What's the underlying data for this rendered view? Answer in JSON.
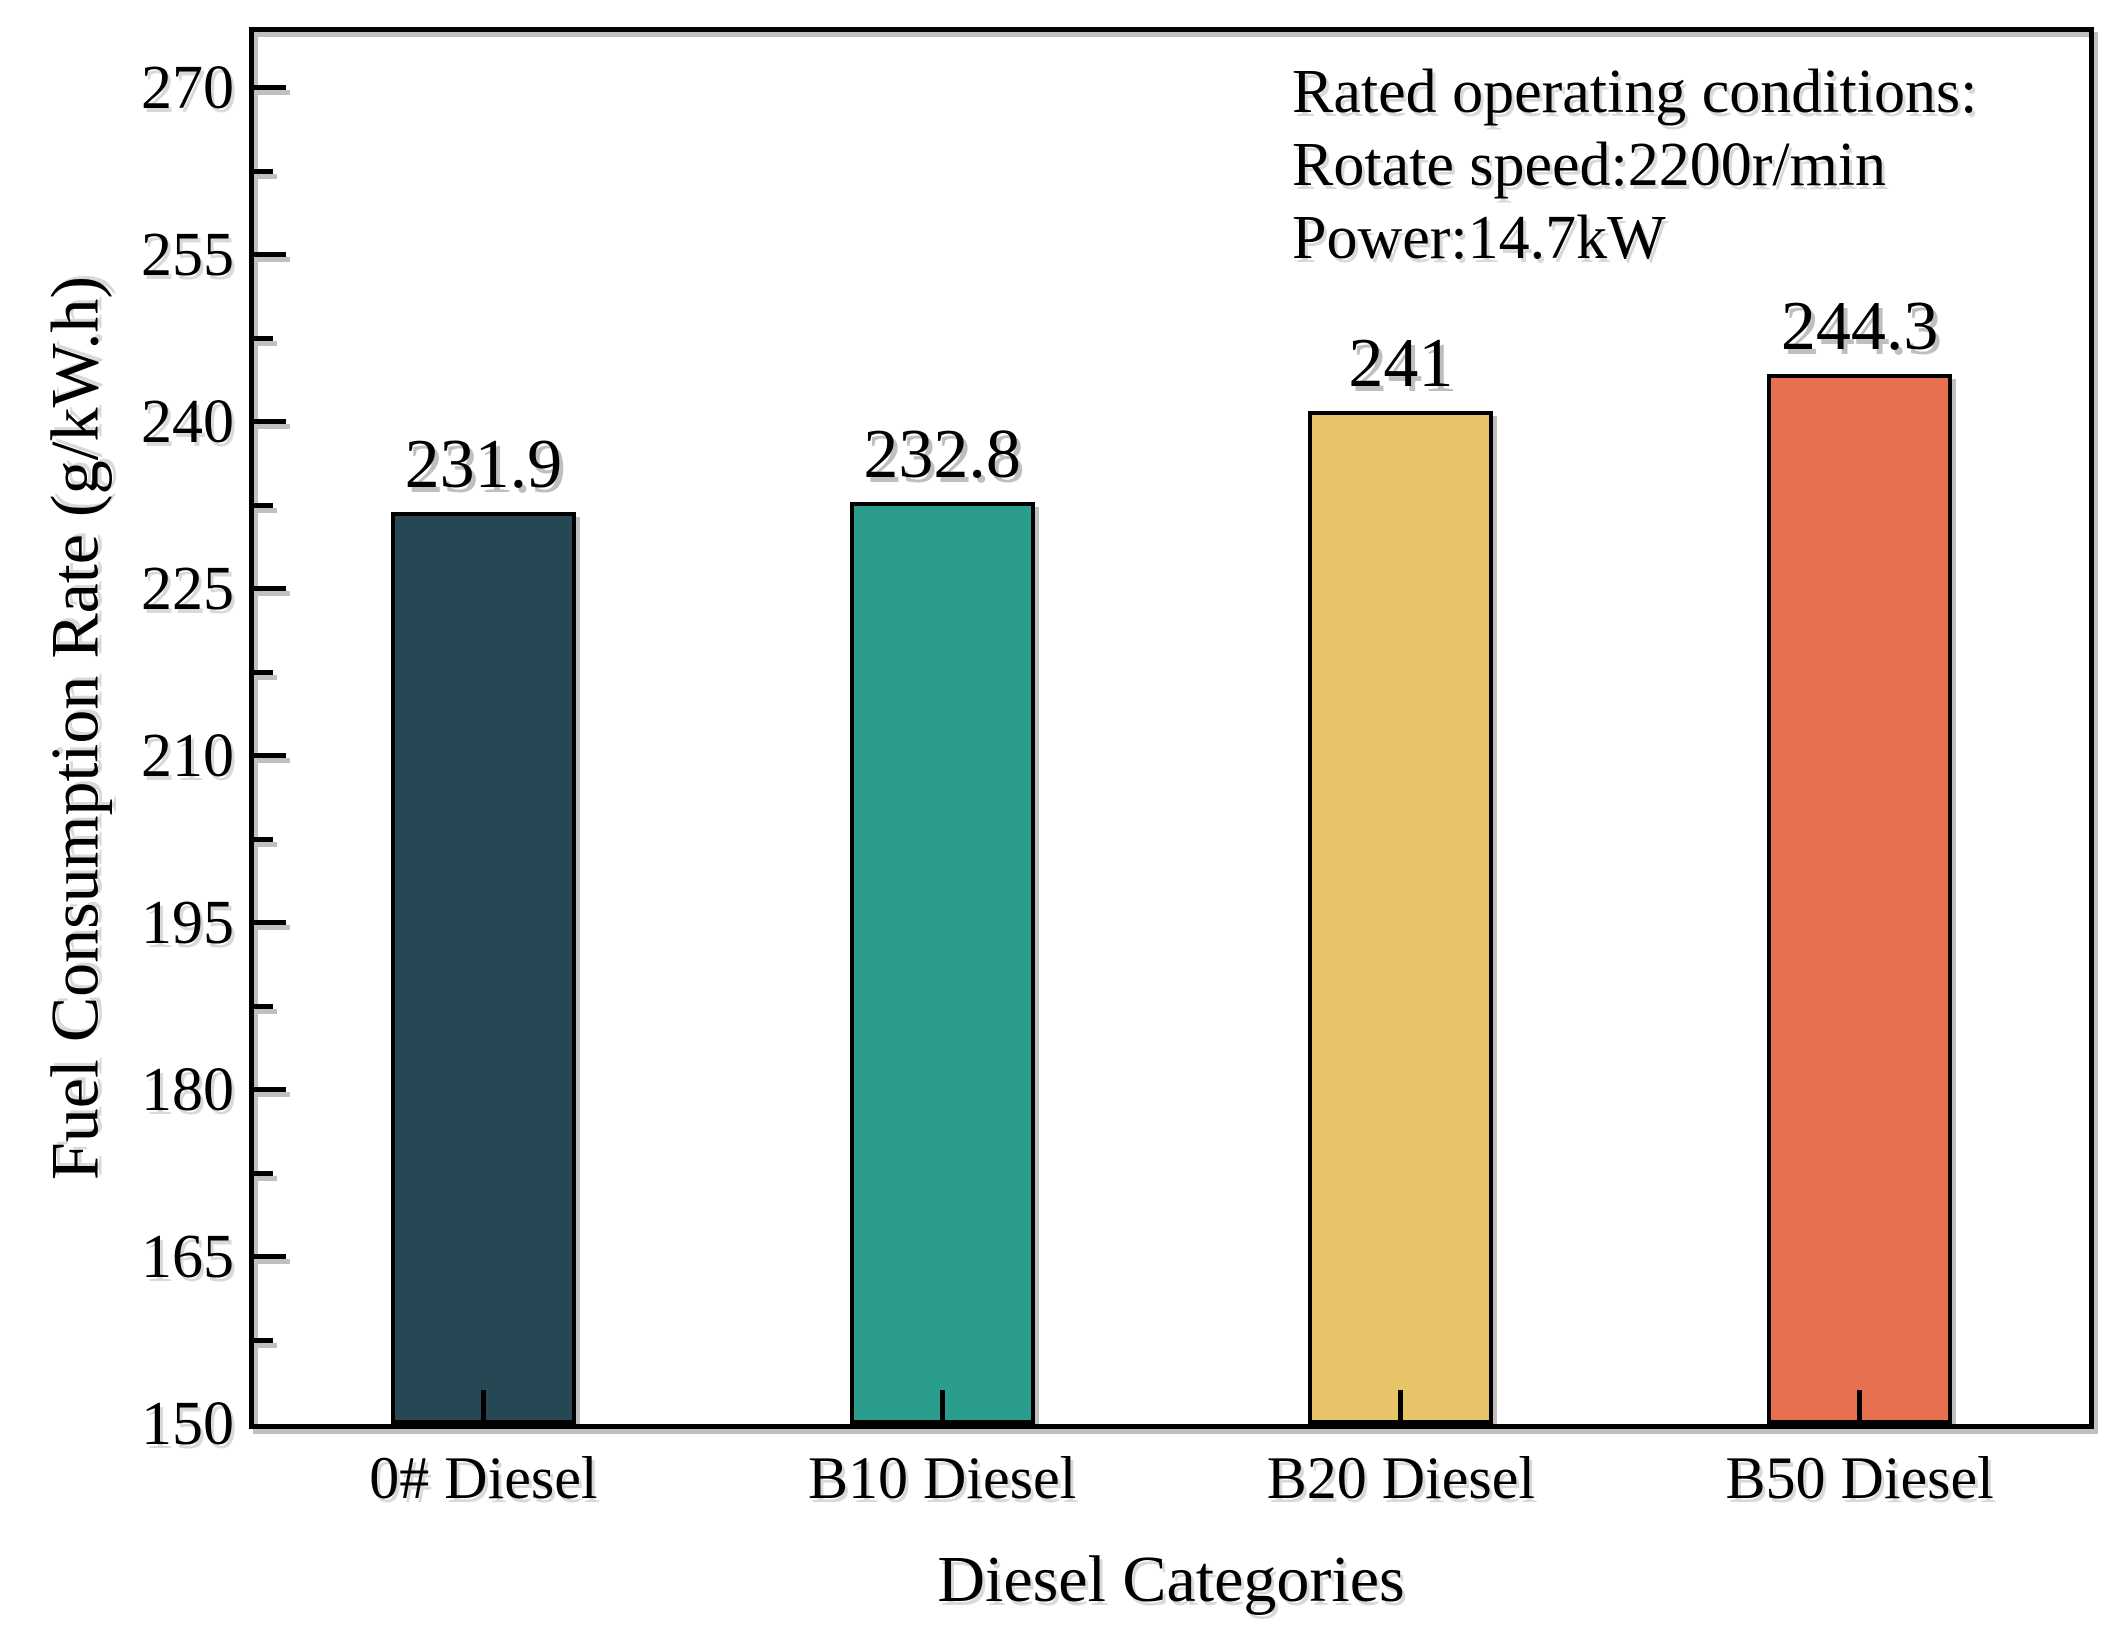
{
  "chart_data": {
    "type": "bar",
    "categories": [
      "0# Diesel",
      "B10 Diesel",
      "B20 Diesel",
      "B50 Diesel"
    ],
    "values": [
      231.9,
      232.8,
      241,
      244.3
    ],
    "bar_value_labels": [
      "231.9",
      "232.8",
      "241",
      "244.3"
    ],
    "bar_colors": [
      "#264854",
      "#2A9D8C",
      "#E8C468",
      "#E77051"
    ],
    "xlabel": "Diesel Categories",
    "ylabel": "Fuel Consumption Rate (g/kW.h)",
    "ylim": [
      150,
      275
    ],
    "ytick_major_step": 15,
    "ytick_minor_step": 7.5,
    "ytick_labels": [
      "150",
      "165",
      "180",
      "195",
      "210",
      "225",
      "240",
      "255",
      "270"
    ],
    "grid": "off",
    "legend": "none",
    "annotation": {
      "line1": "Rated operating conditions:",
      "line2": "Rotate speed:2200r/min",
      "line3": "Power:14.7kW"
    },
    "frame_color": "#000000",
    "background_color": "#ffffff"
  }
}
